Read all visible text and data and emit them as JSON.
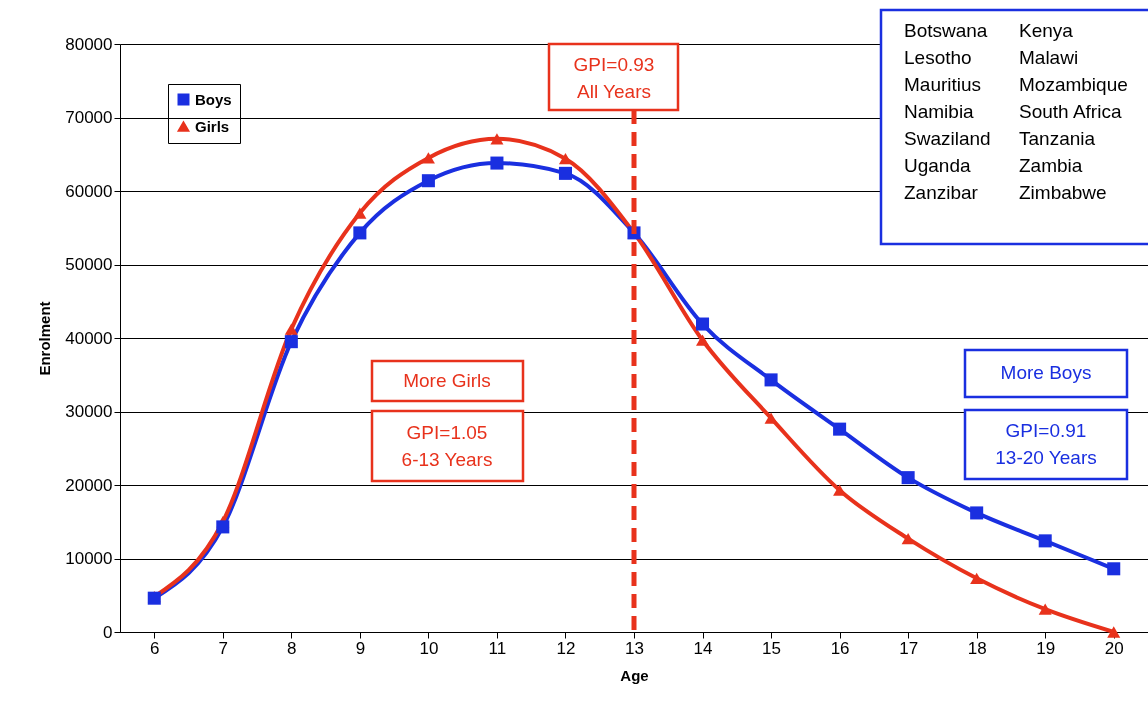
{
  "chart_data": {
    "type": "line",
    "xlabel": "Age",
    "ylabel": "Enrolment",
    "categories": [
      "6",
      "7",
      "8",
      "9",
      "10",
      "11",
      "12",
      "13",
      "14",
      "15",
      "16",
      "17",
      "18",
      "19",
      "20"
    ],
    "series": [
      {
        "name": "Boys",
        "color": "#1a2fe0",
        "marker": "square",
        "values": [
          4600,
          14300,
          39500,
          54300,
          61400,
          63800,
          62400,
          54300,
          41900,
          34300,
          27600,
          21000,
          16200,
          12400,
          8600
        ]
      },
      {
        "name": "Girls",
        "color": "#e8321c",
        "marker": "triangle",
        "values": [
          4800,
          15000,
          41200,
          57000,
          64500,
          67100,
          64400,
          54300,
          39700,
          29100,
          19300,
          12700,
          7300,
          3100,
          0
        ]
      }
    ],
    "ylim": [
      0,
      80000
    ],
    "yticks": [
      0,
      10000,
      20000,
      30000,
      40000,
      50000,
      60000,
      70000,
      80000
    ],
    "grid": "y",
    "legend": "top left",
    "line_style": "solid",
    "ref_lines": [
      {
        "axis": "x",
        "value": "13",
        "label": "GPI=0.93\nAll Years",
        "color": "#e8321c",
        "line_style": "dashed"
      }
    ],
    "annotations": [
      "More Girls",
      "GPI=1.05\n6-13 Years",
      "More Boys",
      "GPI=0.91\n13-20 Years",
      "Botswana\nLesotho\nMauritius\nNamibia\nSwaziland\nUganda\nZanzibar",
      "Kenya\nMalawi\nMozambique\nSouth Africa\nTanzania\nZambia\nZimbabwe"
    ]
  }
}
